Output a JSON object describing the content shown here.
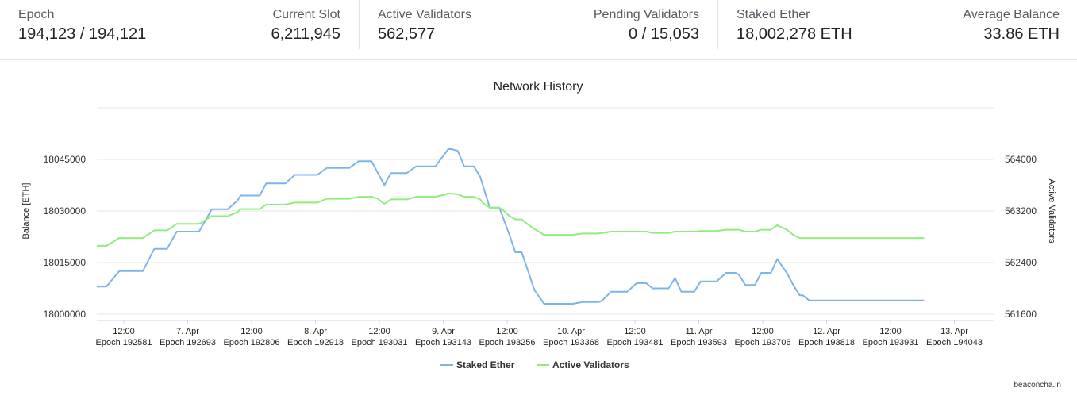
{
  "stats": {
    "epoch": {
      "label": "Epoch",
      "value": "194,123 / 194,121"
    },
    "slot": {
      "label": "Current Slot",
      "value": "6,211,945"
    },
    "active": {
      "label": "Active Validators",
      "value": "562,577"
    },
    "pending": {
      "label": "Pending Validators",
      "value": "0 / 15,053"
    },
    "staked": {
      "label": "Staked Ether",
      "value": "18,002,278 ETH"
    },
    "avg": {
      "label": "Average Balance",
      "value": "33.86 ETH"
    }
  },
  "watermark": "beaconcha.in",
  "colors": {
    "staked": "#7cb5ec",
    "active": "#90ed7d"
  },
  "chart_data": {
    "type": "line",
    "title": "Network History",
    "ylabel_left": "Balance [ETH]",
    "ylabel_right": "Active Validators",
    "y_left": {
      "min": 18000000,
      "max": 18060000,
      "ticks": [
        18000000,
        18015000,
        18030000,
        18045000
      ]
    },
    "y_right": {
      "min": 561600,
      "max": 564800,
      "ticks": [
        561600,
        562400,
        563200,
        564000
      ]
    },
    "x_ticks": [
      {
        "label": "12:00",
        "sub": "Epoch 192581"
      },
      {
        "label": "7. Apr",
        "sub": "Epoch 192693"
      },
      {
        "label": "12:00",
        "sub": "Epoch 192806"
      },
      {
        "label": "8. Apr",
        "sub": "Epoch 192918"
      },
      {
        "label": "12:00",
        "sub": "Epoch 193031"
      },
      {
        "label": "9. Apr",
        "sub": "Epoch 193143"
      },
      {
        "label": "12:00",
        "sub": "Epoch 193256"
      },
      {
        "label": "10. Apr",
        "sub": "Epoch 193368"
      },
      {
        "label": "12:00",
        "sub": "Epoch 193481"
      },
      {
        "label": "11. Apr",
        "sub": "Epoch 193593"
      },
      {
        "label": "12:00",
        "sub": "Epoch 193706"
      },
      {
        "label": "12. Apr",
        "sub": "Epoch 193818"
      },
      {
        "label": "12:00",
        "sub": "Epoch 193931"
      },
      {
        "label": "13. Apr",
        "sub": "Epoch 194043"
      }
    ],
    "series": [
      {
        "name": "Staked Ether",
        "axis": "left",
        "x": [
          0,
          0.15,
          0.35,
          0.55,
          0.72,
          0.9,
          1.1,
          1.25,
          1.45,
          1.6,
          1.8,
          1.95,
          2.05,
          2.2,
          2.25,
          2.35,
          2.55,
          2.65,
          2.75,
          2.95,
          3.1,
          3.25,
          3.45,
          3.6,
          3.75,
          3.95,
          4.1,
          4.3,
          4.4,
          4.5,
          4.6,
          4.7,
          4.85,
          5.0,
          5.15,
          5.3,
          5.5,
          5.55,
          5.65,
          5.75,
          5.9,
          6.0,
          6.05,
          6.15,
          6.3,
          6.35,
          6.45,
          6.55,
          6.65,
          6.75,
          6.85,
          7.0,
          7.15,
          7.35,
          7.45,
          7.6,
          7.75,
          7.85,
          7.9,
          8.05,
          8.15,
          8.3,
          8.45,
          8.6,
          8.7,
          8.8,
          8.95,
          9.05,
          9.15,
          9.35,
          9.45,
          9.55,
          9.7,
          9.85,
          9.9,
          10.0,
          10.05,
          10.15,
          10.3,
          10.4,
          10.5,
          10.55,
          10.65,
          10.8,
          10.9,
          11.0,
          11.05,
          11.15,
          11.35,
          11.45,
          11.6,
          11.7,
          11.8,
          11.95,
          12.05,
          12.15,
          12.25,
          12.4,
          12.55,
          12.65,
          12.8,
          12.95
        ],
        "values": [
          18008000,
          18008000,
          18012500,
          18012500,
          18012500,
          18019000,
          18019000,
          18024000,
          18024000,
          18024000,
          18030500,
          18030500,
          18030500,
          18033000,
          18034500,
          18034500,
          18034500,
          18038000,
          18038000,
          18038000,
          18040500,
          18040500,
          18040500,
          18042500,
          18042500,
          18042500,
          18044500,
          18044500,
          18041000,
          18037500,
          18041000,
          18041000,
          18041000,
          18043000,
          18043000,
          18043000,
          18048000,
          18048000,
          18047500,
          18043000,
          18043000,
          18040000,
          18037000,
          18031000,
          18031000,
          18028500,
          18023500,
          18018000,
          18018000,
          18012500,
          18007000,
          18003000,
          18003000,
          18003000,
          18003000,
          18003500,
          18003500,
          18003500,
          18003800,
          18006500,
          18006500,
          18006500,
          18009000,
          18009000,
          18007500,
          18007500,
          18007500,
          18010500,
          18006500,
          18006500,
          18009500,
          18009500,
          18009500,
          18012000,
          18012000,
          18012000,
          18011500,
          18008500,
          18008500,
          18012000,
          18012000,
          18012000,
          18016000,
          18012000,
          18008500,
          18005500,
          18005500,
          18004000,
          18004000,
          18004000,
          18004000,
          18004000,
          18004000,
          18004000,
          18004000,
          18004000,
          18004000,
          18004000,
          18004000,
          18004000,
          18004000,
          18004000
        ]
      },
      {
        "name": "Active Validators",
        "axis": "right",
        "values": [
          562660,
          562660,
          562780,
          562780,
          562780,
          562900,
          562900,
          563000,
          563000,
          563000,
          563120,
          563120,
          563120,
          563180,
          563230,
          563230,
          563230,
          563300,
          563300,
          563300,
          563330,
          563330,
          563330,
          563390,
          563390,
          563390,
          563420,
          563420,
          563390,
          563310,
          563380,
          563380,
          563380,
          563420,
          563420,
          563420,
          563470,
          563470,
          563460,
          563420,
          563420,
          563380,
          563320,
          563250,
          563250,
          563220,
          563130,
          563070,
          563070,
          562990,
          562920,
          562830,
          562830,
          562830,
          562830,
          562850,
          562850,
          562850,
          562860,
          562880,
          562880,
          562880,
          562880,
          562880,
          562860,
          562860,
          562860,
          562880,
          562880,
          562880,
          562890,
          562890,
          562890,
          562910,
          562910,
          562910,
          562910,
          562880,
          562880,
          562910,
          562910,
          562910,
          562980,
          562910,
          562830,
          562780,
          562780,
          562780,
          562780,
          562780,
          562780,
          562780,
          562780,
          562780,
          562780,
          562780,
          562780,
          562780,
          562780,
          562780,
          562780,
          562780
        ]
      }
    ],
    "legend": "bottom-center"
  }
}
